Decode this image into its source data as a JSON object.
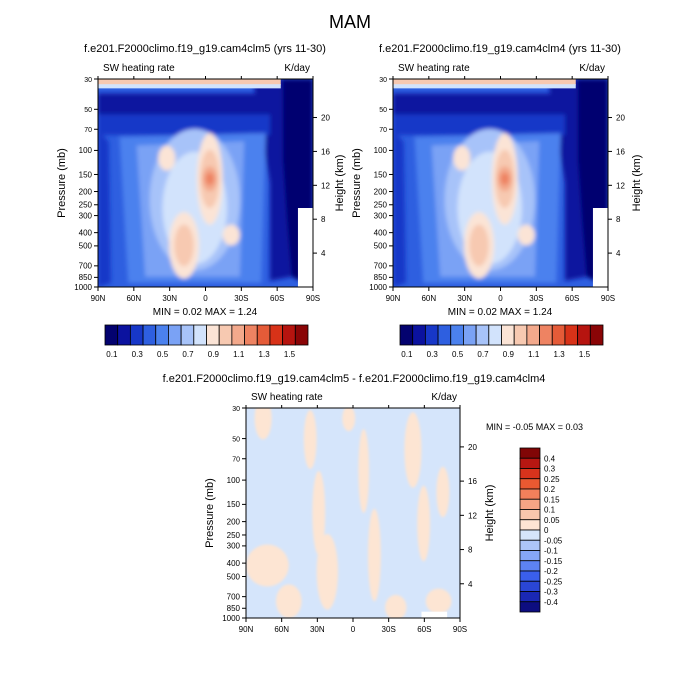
{
  "figure": {
    "title": "MAM"
  },
  "palette": {
    "abs": [
      "#03026f",
      "#0b129f",
      "#1737c8",
      "#2e5fe0",
      "#4b81ee",
      "#7aa2f5",
      "#a7c3f9",
      "#d2e3fc",
      "#fbe4d6",
      "#f7c9b1",
      "#f3a98c",
      "#ee8362",
      "#e55b38",
      "#d83218",
      "#b6140f",
      "#8a0506"
    ],
    "diff": [
      "#0d0d80",
      "#1a28b5",
      "#2a46d6",
      "#3a5fec",
      "#5d83f3",
      "#86a6f7",
      "#adc5f9",
      "#d5e5fb",
      "#fde5d3",
      "#f9c6ad",
      "#f6a585",
      "#f2805b",
      "#ea5931",
      "#d8331c",
      "#b71712",
      "#810606"
    ]
  },
  "panels": [
    {
      "title": "f.e201.F2000climo.f19_g19.cam4clm5 (yrs 11-30)",
      "left_label": "SW heating rate",
      "right_label": "K/day",
      "ylabel": "Pressure (mb)",
      "ylabel_right": "Height (km)",
      "minmax": "MIN =  0.02  MAX =  1.24"
    },
    {
      "title": "f.e201.F2000climo.f19_g19.cam4clm4 (yrs 11-30)",
      "left_label": "SW heating rate",
      "right_label": "K/day",
      "ylabel": "Pressure (mb)",
      "ylabel_right": "Height (km)",
      "minmax": "MIN =  0.02  MAX =  1.24"
    },
    {
      "title": "f.e201.F2000climo.f19_g19.cam4clm5 - f.e201.F2000climo.f19_g19.cam4clm4",
      "left_label": "SW heating rate",
      "right_label": "K/day",
      "ylabel": "Pressure (mb)",
      "ylabel_right": "Height (km)",
      "minmax": "MIN =  -0.05  MAX =   0.03"
    }
  ],
  "chart_data": [
    {
      "type": "heatmap",
      "title": "f.e201.F2000climo.f19_g19.cam4clm5 (yrs 11-30)",
      "variable": "SW heating rate",
      "units": "K/day",
      "xlabel": "",
      "ylabel": "Pressure (mb)",
      "ylabel_right": "Height (km)",
      "xticks": [
        "90N",
        "60N",
        "30N",
        "0",
        "30S",
        "60S",
        "90S"
      ],
      "yticks": [
        30,
        50,
        70,
        100,
        150,
        200,
        250,
        300,
        400,
        500,
        700,
        850,
        1000
      ],
      "yticks_right": [
        20,
        16,
        12,
        8,
        4
      ],
      "ylim": [
        30,
        1000
      ],
      "y_scale": "log",
      "min": 0.02,
      "max": 1.24,
      "colorbar_labels": [
        "0.1",
        "0.3",
        "0.5",
        "0.7",
        "0.9",
        "1.1",
        "1.3",
        "1.5"
      ],
      "levels": [
        0.1,
        0.2,
        0.3,
        0.4,
        0.5,
        0.6,
        0.7,
        0.8,
        0.9,
        1.0,
        1.1,
        1.2,
        1.3,
        1.4,
        1.5
      ]
    },
    {
      "type": "heatmap",
      "title": "f.e201.F2000climo.f19_g19.cam4clm4 (yrs 11-30)",
      "variable": "SW heating rate",
      "units": "K/day",
      "xlabel": "",
      "ylabel": "Pressure (mb)",
      "ylabel_right": "Height (km)",
      "xticks": [
        "90N",
        "60N",
        "30N",
        "0",
        "30S",
        "60S",
        "90S"
      ],
      "yticks": [
        30,
        50,
        70,
        100,
        150,
        200,
        250,
        300,
        400,
        500,
        700,
        850,
        1000
      ],
      "yticks_right": [
        20,
        16,
        12,
        8,
        4
      ],
      "ylim": [
        30,
        1000
      ],
      "y_scale": "log",
      "min": 0.02,
      "max": 1.24,
      "colorbar_labels": [
        "0.1",
        "0.3",
        "0.5",
        "0.7",
        "0.9",
        "1.1",
        "1.3",
        "1.5"
      ],
      "levels": [
        0.1,
        0.2,
        0.3,
        0.4,
        0.5,
        0.6,
        0.7,
        0.8,
        0.9,
        1.0,
        1.1,
        1.2,
        1.3,
        1.4,
        1.5
      ]
    },
    {
      "type": "heatmap",
      "title": "f.e201.F2000climo.f19_g19.cam4clm5 - f.e201.F2000climo.f19_g19.cam4clm4",
      "variable": "SW heating rate",
      "units": "K/day",
      "xlabel": "",
      "ylabel": "Pressure (mb)",
      "ylabel_right": "Height (km)",
      "xticks": [
        "90N",
        "60N",
        "30N",
        "0",
        "30S",
        "60S",
        "90S"
      ],
      "yticks": [
        30,
        50,
        70,
        100,
        150,
        200,
        250,
        300,
        400,
        500,
        700,
        850,
        1000
      ],
      "yticks_right": [
        20,
        16,
        12,
        8,
        4
      ],
      "ylim": [
        30,
        1000
      ],
      "y_scale": "log",
      "min": -0.05,
      "max": 0.03,
      "colorbar_labels": [
        "0.4",
        "0.3",
        "0.25",
        "0.2",
        "0.15",
        "0.1",
        "0.05",
        "0",
        "-0.05",
        "-0.1",
        "-0.15",
        "-0.2",
        "-0.25",
        "-0.3",
        "-0.4"
      ],
      "levels": [
        -0.4,
        -0.3,
        -0.25,
        -0.2,
        -0.15,
        -0.1,
        -0.05,
        0,
        0.05,
        0.1,
        0.15,
        0.2,
        0.25,
        0.3,
        0.4
      ]
    }
  ]
}
